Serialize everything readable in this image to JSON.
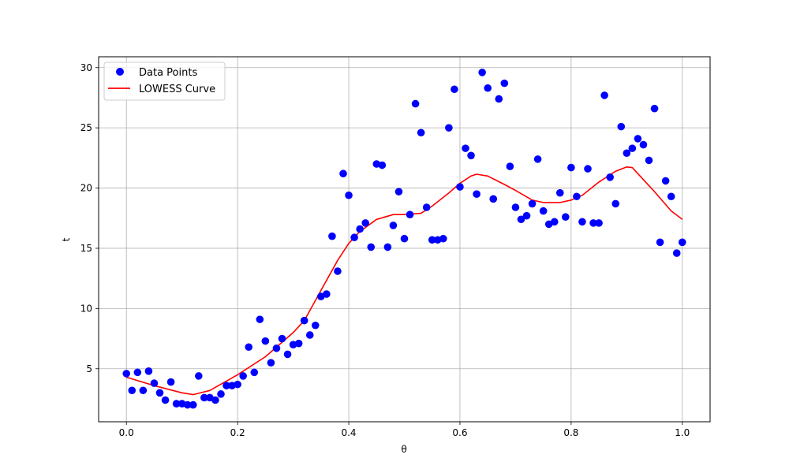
{
  "chart_data": {
    "type": "scatter",
    "title": "",
    "xlabel": "θ",
    "ylabel": "t",
    "xlim": [
      -0.05,
      1.05
    ],
    "ylim": [
      0.6,
      30.9
    ],
    "xticks": [
      0.0,
      0.2,
      0.4,
      0.6,
      0.8,
      1.0
    ],
    "xtick_labels": [
      "0.0",
      "0.2",
      "0.4",
      "0.6",
      "0.8",
      "1.0"
    ],
    "yticks": [
      5,
      10,
      15,
      20,
      25,
      30
    ],
    "ytick_labels": [
      "5",
      "10",
      "15",
      "20",
      "25",
      "30"
    ],
    "grid": true,
    "legend_position": "top-left",
    "series": [
      {
        "name": "Data Points",
        "kind": "scatter",
        "color": "#0000ff",
        "x": [
          0.0,
          0.01,
          0.02,
          0.03,
          0.04,
          0.05,
          0.06,
          0.07,
          0.08,
          0.09,
          0.1,
          0.11,
          0.12,
          0.13,
          0.14,
          0.15,
          0.16,
          0.17,
          0.18,
          0.19,
          0.2,
          0.21,
          0.22,
          0.23,
          0.24,
          0.25,
          0.26,
          0.27,
          0.28,
          0.29,
          0.3,
          0.31,
          0.32,
          0.33,
          0.34,
          0.35,
          0.36,
          0.37,
          0.38,
          0.39,
          0.4,
          0.41,
          0.42,
          0.43,
          0.44,
          0.45,
          0.46,
          0.47,
          0.48,
          0.49,
          0.5,
          0.51,
          0.52,
          0.53,
          0.54,
          0.55,
          0.56,
          0.57,
          0.58,
          0.59,
          0.6,
          0.61,
          0.62,
          0.63,
          0.64,
          0.65,
          0.66,
          0.67,
          0.68,
          0.69,
          0.7,
          0.71,
          0.72,
          0.73,
          0.74,
          0.75,
          0.76,
          0.77,
          0.78,
          0.79,
          0.8,
          0.81,
          0.82,
          0.83,
          0.84,
          0.85,
          0.86,
          0.87,
          0.88,
          0.89,
          0.9,
          0.91,
          0.92,
          0.93,
          0.94,
          0.95,
          0.96,
          0.97,
          0.98,
          0.99,
          1.0
        ],
        "y": [
          4.6,
          3.2,
          4.7,
          3.2,
          4.8,
          3.8,
          3.0,
          2.4,
          3.9,
          2.1,
          2.1,
          2.0,
          2.0,
          4.4,
          2.6,
          2.6,
          2.4,
          2.9,
          3.6,
          3.6,
          3.7,
          4.4,
          6.8,
          4.7,
          9.1,
          7.3,
          5.5,
          6.7,
          7.5,
          6.2,
          7.0,
          7.1,
          9.0,
          7.8,
          8.6,
          11.0,
          11.2,
          16.0,
          13.1,
          21.2,
          19.4,
          15.9,
          16.6,
          17.1,
          15.1,
          22.0,
          21.9,
          15.1,
          16.9,
          19.7,
          15.8,
          17.8,
          27.0,
          24.6,
          18.4,
          15.7,
          15.7,
          15.8,
          25.0,
          28.2,
          20.1,
          23.3,
          22.7,
          19.5,
          29.6,
          28.3,
          19.1,
          27.4,
          28.7,
          21.8,
          18.4,
          17.4,
          17.7,
          18.7,
          22.4,
          18.1,
          17.0,
          17.2,
          19.6,
          17.6,
          21.7,
          19.3,
          17.2,
          21.6,
          17.1,
          17.1,
          27.7,
          20.9,
          18.7,
          25.1,
          22.9,
          23.3,
          24.1,
          23.6,
          22.3,
          26.6,
          15.5,
          20.6,
          19.3,
          14.6,
          15.5
        ]
      },
      {
        "name": "LOWESS Curve",
        "kind": "line",
        "color": "#ff0000",
        "x": [
          0.0,
          0.05,
          0.1,
          0.12,
          0.15,
          0.2,
          0.25,
          0.3,
          0.32,
          0.35,
          0.38,
          0.4,
          0.42,
          0.45,
          0.48,
          0.5,
          0.53,
          0.55,
          0.58,
          0.6,
          0.62,
          0.63,
          0.65,
          0.68,
          0.7,
          0.73,
          0.75,
          0.78,
          0.8,
          0.82,
          0.85,
          0.88,
          0.9,
          0.91,
          0.93,
          0.95,
          0.98,
          1.0
        ],
        "y": [
          4.3,
          3.6,
          3.0,
          2.85,
          3.2,
          4.5,
          6.0,
          8.0,
          9.0,
          11.5,
          14.0,
          15.4,
          16.4,
          17.4,
          17.8,
          17.8,
          17.9,
          18.5,
          19.6,
          20.4,
          21.0,
          21.15,
          21.0,
          20.3,
          19.8,
          19.0,
          18.8,
          18.8,
          19.0,
          19.4,
          20.5,
          21.4,
          21.75,
          21.7,
          20.7,
          19.7,
          18.1,
          17.4
        ]
      }
    ]
  }
}
